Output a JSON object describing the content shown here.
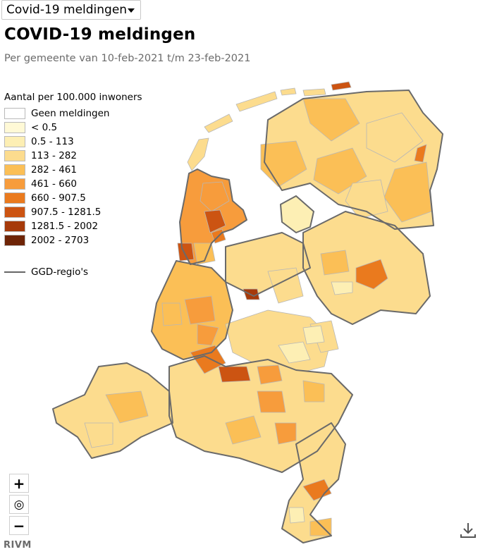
{
  "dropdown": {
    "selected": "Covid-19 meldingen"
  },
  "title": "COVID-19 meldingen",
  "subtitle": "Per gemeente van 10-feb-2021 t/m 23-feb-2021",
  "legend": {
    "title": "Aantal per 100.000 inwoners",
    "items": [
      {
        "label": "Geen meldingen",
        "color": "#ffffff"
      },
      {
        "label": "< 0.5",
        "color": "#fff9d6"
      },
      {
        "label": "0.5 - 113",
        "color": "#fdefb4"
      },
      {
        "label": "113 - 282",
        "color": "#fcdc8e"
      },
      {
        "label": "282 - 461",
        "color": "#fbbf56"
      },
      {
        "label": "461 - 660",
        "color": "#f79c3c"
      },
      {
        "label": "660 - 907.5",
        "color": "#ea7a1e"
      },
      {
        "label": "907.5 - 1281.5",
        "color": "#cc5412"
      },
      {
        "label": "1281.5 - 2002",
        "color": "#a63a0a"
      },
      {
        "label": "2002 - 2703",
        "color": "#6e2406"
      }
    ]
  },
  "ggd_legend": {
    "label": "GGD-regio's",
    "color": "#666666"
  },
  "controls": {
    "zoom_in": "+",
    "reset": "◎",
    "zoom_out": "−"
  },
  "footer": {
    "source": "RIVM"
  },
  "icons": [
    "caret-down-icon",
    "plus-icon",
    "target-icon",
    "minus-icon",
    "download-icon"
  ]
}
